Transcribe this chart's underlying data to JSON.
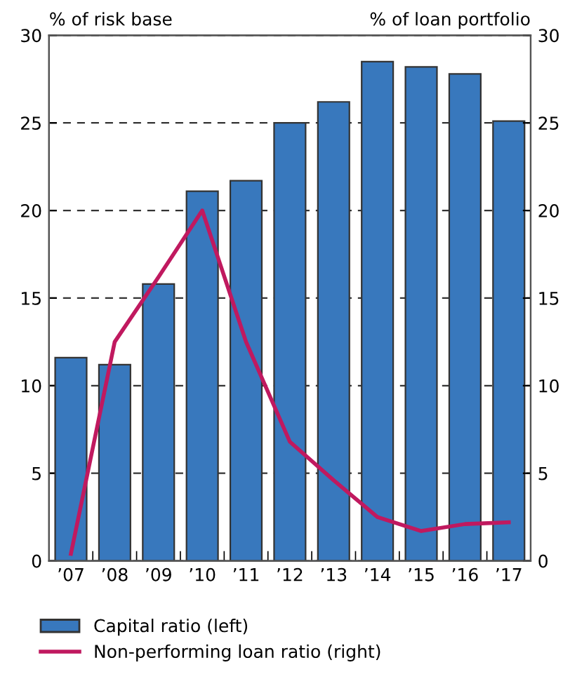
{
  "chart_data": {
    "type": "bar",
    "ylabel": "% of risk base",
    "y2label": "% of loan portfolio",
    "categories": [
      "’07",
      "’08",
      "’09",
      "’10",
      "’11",
      "’12",
      "’13",
      "’14",
      "’15",
      "’16",
      "’17"
    ],
    "series": [
      {
        "name": "Capital ratio (left)",
        "color": "#3878bd",
        "values": [
          11.6,
          11.2,
          15.8,
          21.1,
          21.7,
          25.0,
          26.2,
          28.5,
          28.2,
          27.8,
          25.1
        ]
      },
      {
        "name": "Non-performing loan ratio (right)",
        "type": "line",
        "axis": "y2",
        "color": "#c0195f",
        "values": [
          0.4,
          12.5,
          16.2,
          20.0,
          12.5,
          6.8,
          4.6,
          2.5,
          1.7,
          2.1,
          2.2
        ]
      }
    ],
    "ylim": [
      0,
      30
    ],
    "yticks": [
      0,
      5,
      10,
      15,
      20,
      25,
      30
    ],
    "y2lim": [
      0,
      30
    ],
    "y2ticks": [
      0,
      5,
      10,
      15,
      20,
      25,
      30
    ],
    "grid": "y",
    "legend": "bottom"
  }
}
